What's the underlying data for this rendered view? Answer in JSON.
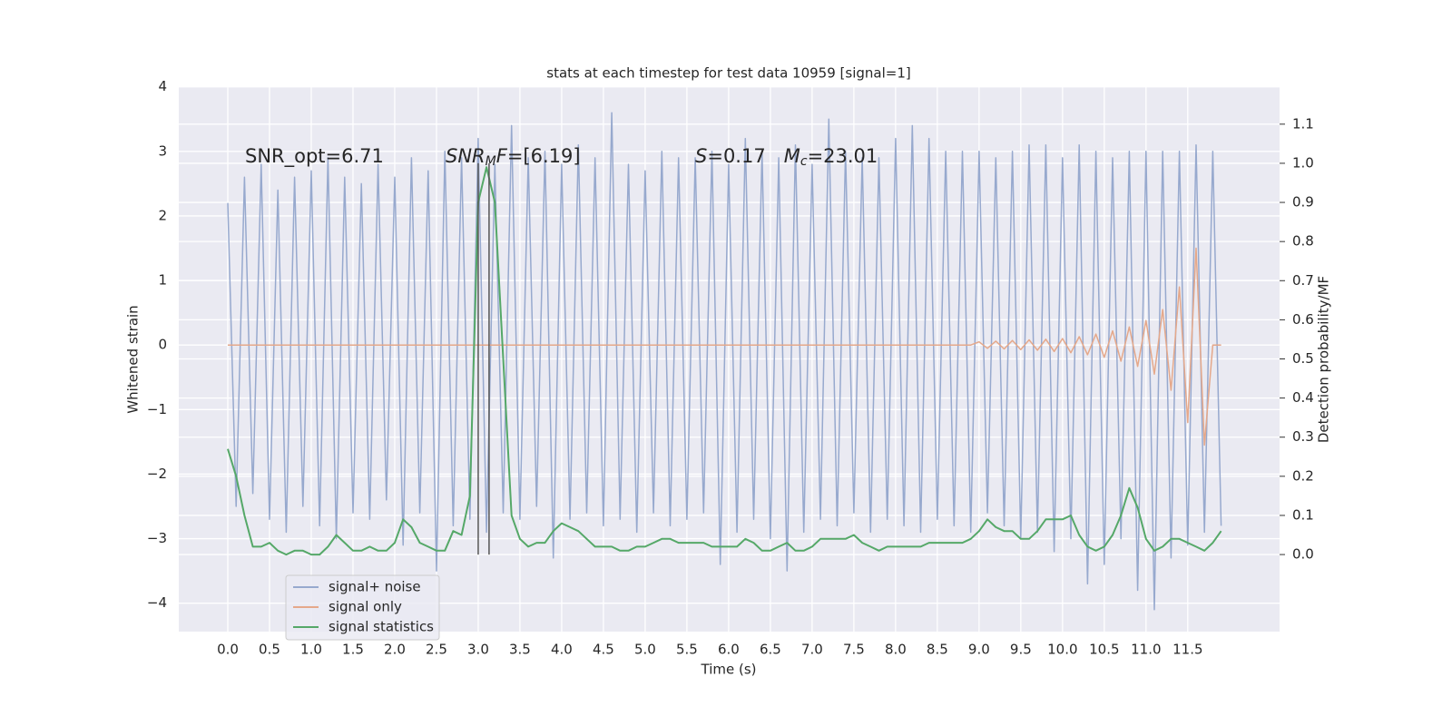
{
  "chart_data": {
    "type": "line",
    "title": "stats at each timestep for test data 10959 [signal=1]",
    "x_label": "Time (s)",
    "y_label": "Whitened strain",
    "y2_label": "Detection probability/MF",
    "annotations": [
      [
        {
          "text": "SNR_opt=6.71",
          "style": "normal"
        }
      ],
      [
        {
          "text": "SNR",
          "style": "italic"
        },
        {
          "text": "M",
          "style": "italic-sub"
        },
        {
          "text": "F",
          "style": "italic"
        },
        {
          "text": "=[6.19]",
          "style": "normal"
        }
      ],
      [
        {
          "text": "S",
          "style": "italic"
        },
        {
          "text": "=0.17   ",
          "style": "normal"
        },
        {
          "text": "M",
          "style": "italic"
        },
        {
          "text": "c",
          "style": "italic-sub"
        },
        {
          "text": "=23.01",
          "style": "normal"
        }
      ]
    ],
    "x": [
      0.0,
      0.1,
      0.2,
      0.3,
      0.4,
      0.5,
      0.6,
      0.7,
      0.8,
      0.9,
      1.0,
      1.1,
      1.2,
      1.3,
      1.4,
      1.5,
      1.6,
      1.7,
      1.8,
      1.9,
      2.0,
      2.1,
      2.2,
      2.3,
      2.4,
      2.5,
      2.6,
      2.7,
      2.8,
      2.9,
      3.0,
      3.1,
      3.2,
      3.3,
      3.4,
      3.5,
      3.6,
      3.7,
      3.8,
      3.9,
      4.0,
      4.1,
      4.2,
      4.3,
      4.4,
      4.5,
      4.6,
      4.7,
      4.8,
      4.9,
      5.0,
      5.1,
      5.2,
      5.3,
      5.4,
      5.5,
      5.6,
      5.7,
      5.8,
      5.9,
      6.0,
      6.1,
      6.2,
      6.3,
      6.4,
      6.5,
      6.6,
      6.7,
      6.8,
      6.9,
      7.0,
      7.1,
      7.2,
      7.3,
      7.4,
      7.5,
      7.6,
      7.7,
      7.8,
      7.9,
      8.0,
      8.1,
      8.2,
      8.3,
      8.4,
      8.5,
      8.6,
      8.7,
      8.8,
      8.9,
      9.0,
      9.1,
      9.2,
      9.3,
      9.4,
      9.5,
      9.6,
      9.7,
      9.8,
      9.9,
      10.0,
      10.1,
      10.2,
      10.3,
      10.4,
      10.5,
      10.6,
      10.7,
      10.8,
      10.9,
      11.0,
      11.1,
      11.2,
      11.3,
      11.4,
      11.5,
      11.6,
      11.7,
      11.8,
      11.9
    ],
    "series": [
      {
        "name": "signal+ noise",
        "color": "#97a9ce",
        "values": [
          2.2,
          -2.5,
          2.6,
          -2.3,
          2.8,
          -2.7,
          2.4,
          -2.9,
          2.6,
          -2.5,
          2.7,
          -2.8,
          2.9,
          -3.0,
          2.6,
          -2.6,
          2.5,
          -2.7,
          2.8,
          -2.4,
          2.6,
          -3.1,
          2.9,
          -2.6,
          2.7,
          -3.5,
          3.0,
          -2.8,
          2.9,
          -2.7,
          3.2,
          -2.9,
          2.8,
          -2.6,
          3.4,
          -2.7,
          2.9,
          -2.5,
          3.0,
          -3.3,
          2.8,
          -2.7,
          3.1,
          -2.6,
          2.9,
          -2.8,
          3.6,
          -2.7,
          2.8,
          -2.9,
          2.7,
          -2.6,
          3.0,
          -2.8,
          2.9,
          -2.7,
          2.9,
          -2.6,
          3.0,
          -3.4,
          2.8,
          -2.9,
          3.2,
          -2.7,
          3.0,
          -3.0,
          2.9,
          -3.5,
          3.1,
          -2.9,
          2.8,
          -2.7,
          3.5,
          -2.8,
          3.0,
          -2.6,
          2.9,
          -2.9,
          2.9,
          -2.7,
          3.2,
          -2.8,
          3.4,
          -2.9,
          3.2,
          -2.7,
          3.0,
          -2.8,
          3.0,
          -2.9,
          3.0,
          -2.6,
          2.9,
          -2.8,
          3.0,
          -3.0,
          3.1,
          -2.9,
          3.1,
          -3.2,
          2.9,
          -3.0,
          3.1,
          -3.7,
          3.0,
          -3.4,
          2.9,
          -3.0,
          3.0,
          -3.8,
          3.0,
          -4.1,
          3.0,
          -3.3,
          3.0,
          -3.1,
          3.1,
          -2.9,
          3.0,
          -2.8
        ]
      },
      {
        "name": "signal only",
        "color": "#e5a88a",
        "values": [
          0,
          0,
          0,
          0,
          0,
          0,
          0,
          0,
          0,
          0,
          0,
          0,
          0,
          0,
          0,
          0,
          0,
          0,
          0,
          0,
          0,
          0,
          0,
          0,
          0,
          0,
          0,
          0,
          0,
          0,
          0,
          0,
          0,
          0,
          0,
          0,
          0,
          0,
          0,
          0,
          0,
          0,
          0,
          0,
          0,
          0,
          0,
          0,
          0,
          0,
          0,
          0,
          0,
          0,
          0,
          0,
          0,
          0,
          0,
          0,
          0,
          0,
          0,
          0,
          0,
          0,
          0,
          0,
          0,
          0,
          0,
          0,
          0,
          0,
          0,
          0,
          0,
          0,
          0,
          0,
          0,
          0,
          0,
          0,
          0,
          0,
          0,
          0,
          0,
          0,
          0.05,
          -0.05,
          0.06,
          -0.06,
          0.07,
          -0.07,
          0.08,
          -0.08,
          0.09,
          -0.1,
          0.1,
          -0.12,
          0.13,
          -0.15,
          0.17,
          -0.19,
          0.22,
          -0.25,
          0.28,
          -0.33,
          0.38,
          -0.45,
          0.55,
          -0.7,
          0.9,
          -1.2,
          1.5,
          -1.55,
          0,
          0
        ]
      },
      {
        "name": "signal statistics",
        "color": "#55a868",
        "axis": "y2",
        "values": [
          0.27,
          0.2,
          0.1,
          0.02,
          0.02,
          0.03,
          0.01,
          0.0,
          0.01,
          0.01,
          0.0,
          0.0,
          0.02,
          0.05,
          0.03,
          0.01,
          0.01,
          0.02,
          0.01,
          0.01,
          0.03,
          0.09,
          0.07,
          0.03,
          0.02,
          0.01,
          0.01,
          0.06,
          0.05,
          0.15,
          0.9,
          0.99,
          0.9,
          0.5,
          0.1,
          0.04,
          0.02,
          0.03,
          0.03,
          0.06,
          0.08,
          0.07,
          0.06,
          0.04,
          0.02,
          0.02,
          0.02,
          0.01,
          0.01,
          0.02,
          0.02,
          0.03,
          0.04,
          0.04,
          0.03,
          0.03,
          0.03,
          0.03,
          0.02,
          0.02,
          0.02,
          0.02,
          0.04,
          0.03,
          0.01,
          0.01,
          0.02,
          0.03,
          0.01,
          0.01,
          0.02,
          0.04,
          0.04,
          0.04,
          0.04,
          0.05,
          0.03,
          0.02,
          0.01,
          0.02,
          0.02,
          0.02,
          0.02,
          0.02,
          0.03,
          0.03,
          0.03,
          0.03,
          0.03,
          0.04,
          0.06,
          0.09,
          0.07,
          0.06,
          0.06,
          0.04,
          0.04,
          0.06,
          0.09,
          0.09,
          0.09,
          0.1,
          0.05,
          0.02,
          0.01,
          0.02,
          0.05,
          0.1,
          0.17,
          0.12,
          0.04,
          0.01,
          0.02,
          0.04,
          0.04,
          0.03,
          0.02,
          0.01,
          0.03,
          0.06
        ]
      }
    ],
    "vlines": {
      "x": [
        3.0,
        3.13
      ],
      "ymin": 0,
      "ymax": 1,
      "axis": "y2",
      "color": "#555555"
    },
    "xlim": [
      -0.587,
      12.6
    ],
    "ylim": [
      -4.44,
      4.01
    ],
    "y2lim": [
      -0.197,
      1.197
    ],
    "xticks": [
      {
        "value": 0,
        "label": "0.0"
      },
      0.5,
      {
        "value": 1,
        "label": "1.0"
      },
      1.5,
      {
        "value": 2,
        "label": "2.0"
      },
      2.5,
      {
        "value": 3,
        "label": "3.0"
      },
      3.5,
      {
        "value": 4,
        "label": "4.0"
      },
      4.5,
      {
        "value": 5,
        "label": "5.0"
      },
      5.5,
      {
        "value": 6,
        "label": "6.0"
      },
      6.5,
      {
        "value": 7,
        "label": "7.0"
      },
      7.5,
      {
        "value": 8,
        "label": "8.0"
      },
      8.5,
      {
        "value": 9,
        "label": "9.0"
      },
      9.5,
      {
        "value": 10,
        "label": "10.0"
      },
      10.5,
      {
        "value": 11,
        "label": "11.0"
      },
      11.5
    ],
    "yticks": [
      {
        "value": -4,
        "label": "−4"
      },
      {
        "value": -3,
        "label": "−3"
      },
      {
        "value": -2,
        "label": "−2"
      },
      {
        "value": -1,
        "label": "−1"
      },
      0,
      1,
      2,
      3,
      4
    ],
    "y2ticks": [
      {
        "value": 0,
        "label": "0.0"
      },
      0.1,
      0.2,
      0.3,
      0.4,
      0.5,
      0.6,
      0.7,
      0.8,
      0.9,
      {
        "value": 1,
        "label": "1.0"
      },
      1.1
    ],
    "grid": true,
    "legend": "lower left"
  }
}
